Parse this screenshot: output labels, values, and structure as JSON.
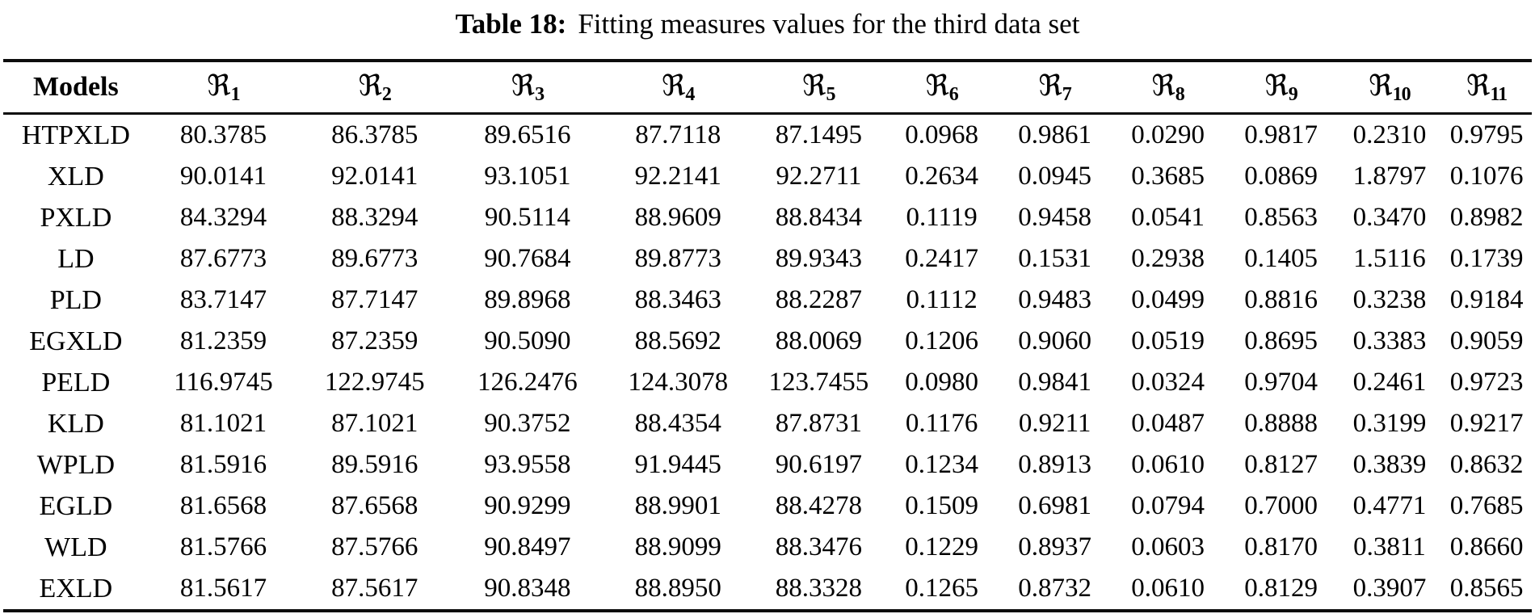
{
  "caption": {
    "label": "Table 18:",
    "text": "Fitting measures values for the third data set"
  },
  "table": {
    "models_header": "Models",
    "r_symbol": "ℜ",
    "columns": [
      {
        "sub": "1"
      },
      {
        "sub": "2"
      },
      {
        "sub": "3"
      },
      {
        "sub": "4"
      },
      {
        "sub": "5"
      },
      {
        "sub": "6"
      },
      {
        "sub": "7"
      },
      {
        "sub": "8"
      },
      {
        "sub": "9"
      },
      {
        "sub": "10"
      },
      {
        "sub": "11"
      }
    ],
    "rows": [
      {
        "model": "HTPXLD",
        "values": [
          "80.3785",
          "86.3785",
          "89.6516",
          "87.7118",
          "87.1495",
          "0.0968",
          "0.9861",
          "0.0290",
          "0.9817",
          "0.2310",
          "0.9795"
        ]
      },
      {
        "model": "XLD",
        "values": [
          "90.0141",
          "92.0141",
          "93.1051",
          "92.2141",
          "92.2711",
          "0.2634",
          "0.0945",
          "0.3685",
          "0.0869",
          "1.8797",
          "0.1076"
        ]
      },
      {
        "model": "PXLD",
        "values": [
          "84.3294",
          "88.3294",
          "90.5114",
          "88.9609",
          "88.8434",
          "0.1119",
          "0.9458",
          "0.0541",
          "0.8563",
          "0.3470",
          "0.8982"
        ]
      },
      {
        "model": "LD",
        "values": [
          "87.6773",
          "89.6773",
          "90.7684",
          "89.8773",
          "89.9343",
          "0.2417",
          "0.1531",
          "0.2938",
          "0.1405",
          "1.5116",
          "0.1739"
        ]
      },
      {
        "model": "PLD",
        "values": [
          "83.7147",
          "87.7147",
          "89.8968",
          "88.3463",
          "88.2287",
          "0.1112",
          "0.9483",
          "0.0499",
          "0.8816",
          "0.3238",
          "0.9184"
        ]
      },
      {
        "model": "EGXLD",
        "values": [
          "81.2359",
          "87.2359",
          "90.5090",
          "88.5692",
          "88.0069",
          "0.1206",
          "0.9060",
          "0.0519",
          "0.8695",
          "0.3383",
          "0.9059"
        ]
      },
      {
        "model": "PELD",
        "values": [
          "116.9745",
          "122.9745",
          "126.2476",
          "124.3078",
          "123.7455",
          "0.0980",
          "0.9841",
          "0.0324",
          "0.9704",
          "0.2461",
          "0.9723"
        ]
      },
      {
        "model": "KLD",
        "values": [
          "81.1021",
          "87.1021",
          "90.3752",
          "88.4354",
          "87.8731",
          "0.1176",
          "0.9211",
          "0.0487",
          "0.8888",
          "0.3199",
          "0.9217"
        ]
      },
      {
        "model": "WPLD",
        "values": [
          "81.5916",
          "89.5916",
          "93.9558",
          "91.9445",
          "90.6197",
          "0.1234",
          "0.8913",
          "0.0610",
          "0.8127",
          "0.3839",
          "0.8632"
        ]
      },
      {
        "model": "EGLD",
        "values": [
          "81.6568",
          "87.6568",
          "90.9299",
          "88.9901",
          "88.4278",
          "0.1509",
          "0.6981",
          "0.0794",
          "0.7000",
          "0.4771",
          "0.7685"
        ]
      },
      {
        "model": "WLD",
        "values": [
          "81.5766",
          "87.5766",
          "90.8497",
          "88.9099",
          "88.3476",
          "0.1229",
          "0.8937",
          "0.0603",
          "0.8170",
          "0.3811",
          "0.8660"
        ]
      },
      {
        "model": "EXLD",
        "values": [
          "81.5617",
          "87.5617",
          "90.8348",
          "88.8950",
          "88.3328",
          "0.1265",
          "0.8732",
          "0.0610",
          "0.8129",
          "0.3907",
          "0.8565"
        ]
      }
    ],
    "column_widths_pct": [
      9.5,
      9.8,
      10.0,
      10.0,
      9.7,
      8.7,
      7.4,
      7.4,
      7.4,
      7.4,
      6.8,
      5.9
    ]
  },
  "colors": {
    "background": "#ffffff",
    "text": "#000000",
    "rule": "#0d0d0d"
  }
}
